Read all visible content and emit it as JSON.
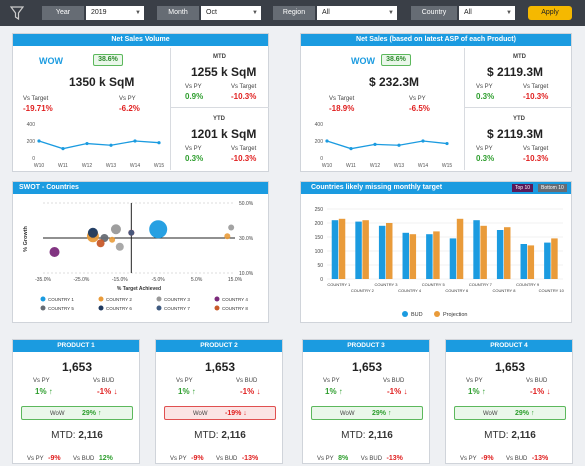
{
  "filters": {
    "year": {
      "label": "Year",
      "value": "2019"
    },
    "month": {
      "label": "Month",
      "value": "Oct"
    },
    "region": {
      "label": "Region",
      "value": "All"
    },
    "country": {
      "label": "Country",
      "value": "All"
    },
    "apply_label": "Apply"
  },
  "net_sales_volume": {
    "title": "Net Sales Volume",
    "wow_label": "WOW",
    "wow_value": "38.6%",
    "main_value": "1350 k SqM",
    "vs_target_label": "Vs Target",
    "vs_target": "-19.71%",
    "vs_py_label": "Vs PY",
    "vs_py": "-6.2%",
    "mtd_label": "MTD",
    "mtd_value": "1255 k SqM",
    "mtd_vs_py": "0.9%",
    "mtd_vs_target": "-10.3%",
    "ytd_label": "YTD",
    "ytd_value": "1201 k SqM",
    "ytd_vs_py": "0.3%",
    "ytd_vs_target": "-10.3%",
    "chart": {
      "y_ticks": [
        "400",
        "200",
        "0"
      ],
      "x": [
        "W10",
        "W11",
        "W12",
        "W13",
        "W14",
        "W15"
      ],
      "values": [
        200,
        110,
        170,
        150,
        200,
        180
      ],
      "ymax": 400,
      "color": "#1b9be0"
    }
  },
  "net_sales": {
    "title": "Net Sales (based on latest ASP of each Product)",
    "wow_label": "WOW",
    "wow_value": "38.6%",
    "main_value": "$ 232.3M",
    "vs_target_label": "Vs Target",
    "vs_target": "-18.9%",
    "vs_py_label": "Vs PY",
    "vs_py": "-6.5%",
    "mtd_label": "MTD",
    "mtd_value": "$ 2119.3M",
    "mtd_vs_py": "0.3%",
    "mtd_vs_target": "-10.3%",
    "ytd_label": "YTD",
    "ytd_value": "$ 2119.3M",
    "ytd_vs_py": "0.3%",
    "ytd_vs_target": "-10.3%",
    "chart": {
      "y_ticks": [
        "400",
        "200",
        "0"
      ],
      "x": [
        "W10",
        "W11",
        "W12",
        "W13",
        "W14",
        "W15"
      ],
      "values": [
        200,
        110,
        160,
        150,
        200,
        170
      ],
      "ymax": 400,
      "color": "#1b9be0"
    }
  },
  "swot": {
    "title": "SWOT - Countries",
    "ylabel": "% Growth",
    "xlabel": "% Target Achieved",
    "x_ticks": [
      "-35.0%",
      "-25.0%",
      "-15.0%",
      "-5.0%",
      "5.0%",
      "15.0%"
    ],
    "y_ticks": [
      "50.0%",
      "30.0%",
      "10.0%"
    ],
    "chart_data": {
      "type": "scatter",
      "xlim": [
        -35,
        15
      ],
      "ylim": [
        10,
        50
      ],
      "series": [
        {
          "name": "COUNTRY 1",
          "color": "#1b9be0",
          "x": -5,
          "y": 35,
          "r": 9
        },
        {
          "name": "COUNTRY 2",
          "color": "#e99b3a",
          "x": -22,
          "y": 31,
          "r": 6
        },
        {
          "name": "COUNTRY 3",
          "color": "#999999",
          "x": -16,
          "y": 35,
          "r": 5
        },
        {
          "name": "COUNTRY 4",
          "color": "#7b2a7b",
          "x": -32,
          "y": 22,
          "r": 5
        },
        {
          "name": "COUNTRY 5",
          "color": "#666c74",
          "x": -19,
          "y": 30,
          "r": 4
        },
        {
          "name": "COUNTRY 6",
          "color": "#1f3a60",
          "x": -22,
          "y": 33,
          "r": 5
        },
        {
          "name": "COUNTRY 7",
          "color": "#3f5a80",
          "x": -12,
          "y": 33,
          "r": 3
        },
        {
          "name": "COUNTRY 8",
          "color": "#c85a2a",
          "x": -20,
          "y": 27,
          "r": 4
        }
      ],
      "extra": [
        {
          "x": -22,
          "y": 33,
          "r": 4,
          "color": "#2f6bb0"
        },
        {
          "x": -15,
          "y": 25,
          "r": 4,
          "color": "#a0a0a0"
        },
        {
          "x": -17,
          "y": 29,
          "r": 3,
          "color": "#e99b3a"
        },
        {
          "x": 13,
          "y": 31,
          "r": 3,
          "color": "#e99b3a"
        },
        {
          "x": 14,
          "y": 36,
          "r": 3,
          "color": "#999999"
        },
        {
          "x": -12,
          "y": 33,
          "r": 3,
          "color": "#e02020"
        }
      ]
    }
  },
  "missing": {
    "title": "Countries likely missing monthly target",
    "top_label": "Top 10",
    "bottom_label": "Bottom 10",
    "y_ticks": [
      "250",
      "200",
      "150",
      "100",
      "50",
      "0"
    ],
    "legend": [
      {
        "name": "BUD",
        "color": "#1b9be0"
      },
      {
        "name": "Projection",
        "color": "#e99b3a"
      }
    ],
    "chart_data": {
      "type": "bar",
      "categories": [
        "COUNTRY 1",
        "COUNTRY 2",
        "COUNTRY 3",
        "COUNTRY 4",
        "COUNTRY 5",
        "COUNTRY 6",
        "COUNTRY 7",
        "COUNTRY 8",
        "COUNTRY 9",
        "COUNTRY 10"
      ],
      "series": [
        {
          "name": "BUD",
          "values": [
            210,
            205,
            190,
            165,
            160,
            145,
            210,
            175,
            125,
            130
          ]
        },
        {
          "name": "Projection",
          "values": [
            215,
            210,
            200,
            160,
            170,
            215,
            190,
            185,
            120,
            145
          ]
        }
      ],
      "ylim": [
        0,
        250
      ]
    }
  },
  "products": [
    {
      "title": "PRODUCT 1",
      "value": "1,653",
      "vs_py_label": "Vs PY",
      "vs_bud_label": "Vs BUD",
      "vs_py": "1%",
      "vs_py_dir": "up",
      "vs_bud": "-1%",
      "vs_bud_dir": "down",
      "wow_label": "WoW",
      "wow": "29%",
      "wow_dir": "up",
      "wow_good": true,
      "mtd_label": "MTD:",
      "mtd": "2,116",
      "mvs_py": "-9%",
      "mvs_py_color": "red",
      "mvs_bud": "12%",
      "mvs_bud_color": "grn"
    },
    {
      "title": "PRODUCT 2",
      "value": "1,653",
      "vs_py_label": "Vs PY",
      "vs_bud_label": "Vs BUD",
      "vs_py": "1%",
      "vs_py_dir": "up",
      "vs_bud": "-1%",
      "vs_bud_dir": "down",
      "wow_label": "WoW",
      "wow": "-19%",
      "wow_dir": "down",
      "wow_good": false,
      "mtd_label": "MTD:",
      "mtd": "2,116",
      "mvs_py": "-9%",
      "mvs_py_color": "red",
      "mvs_bud": "-13%",
      "mvs_bud_color": "red"
    },
    {
      "title": "PRODUCT 3",
      "value": "1,653",
      "vs_py_label": "Vs PY",
      "vs_bud_label": "Vs BUD",
      "vs_py": "1%",
      "vs_py_dir": "up",
      "vs_bud": "-1%",
      "vs_bud_dir": "down",
      "wow_label": "WoW",
      "wow": "29%",
      "wow_dir": "up",
      "wow_good": true,
      "mtd_label": "MTD:",
      "mtd": "2,116",
      "mvs_py": "8%",
      "mvs_py_color": "grn",
      "mvs_bud": "-13%",
      "mvs_bud_color": "red"
    },
    {
      "title": "PRODUCT 4",
      "value": "1,653",
      "vs_py_label": "Vs PY",
      "vs_bud_label": "Vs BUD",
      "vs_py": "1%",
      "vs_py_dir": "up",
      "vs_bud": "-1%",
      "vs_bud_dir": "down",
      "wow_label": "WoW",
      "wow": "29%",
      "wow_dir": "up",
      "wow_good": true,
      "mtd_label": "MTD:",
      "mtd": "2,116",
      "mvs_py": "-9%",
      "mvs_py_color": "red",
      "mvs_bud": "-13%",
      "mvs_bud_color": "red"
    }
  ],
  "arrows": {
    "up": "↑",
    "down": "↓"
  }
}
